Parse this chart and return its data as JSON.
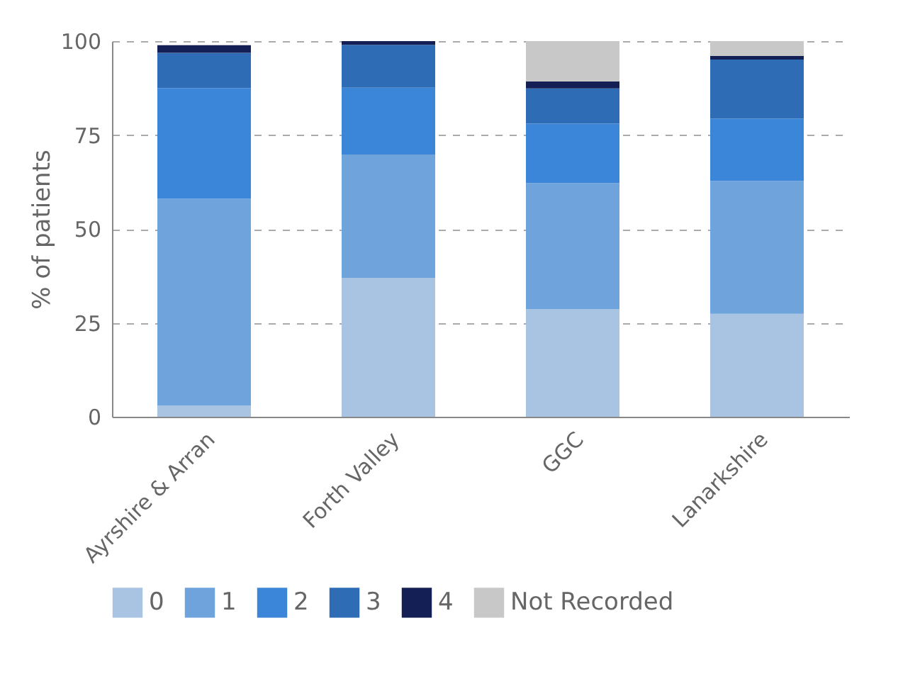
{
  "chart_data": {
    "type": "bar",
    "stacked": true,
    "ylabel": "% of patients",
    "categories": [
      "Ayrshire & Arran",
      "Forth Valley",
      "GGC",
      "Lanarkshire"
    ],
    "series": [
      {
        "name": "0",
        "color": "#a8c4e2",
        "values": [
          3,
          37,
          28.7,
          27.4
        ]
      },
      {
        "name": "1",
        "color": "#6fa3dc",
        "values": [
          55,
          32.8,
          33.5,
          35.4
        ]
      },
      {
        "name": "2",
        "color": "#3b86d8",
        "values": [
          29.5,
          17.8,
          15.8,
          16.6
        ]
      },
      {
        "name": "3",
        "color": "#2e6db5",
        "values": [
          9.4,
          11.4,
          9.4,
          15.7
        ]
      },
      {
        "name": "4",
        "color": "#141f55",
        "values": [
          2,
          1,
          1.9,
          1
        ]
      },
      {
        "name": "Not Recorded",
        "color": "#c8c8c8",
        "values": [
          0,
          0,
          10.7,
          3.9
        ]
      }
    ],
    "ylim": [
      0,
      100
    ],
    "yticks": [
      0,
      25,
      50,
      75,
      100
    ],
    "grid": "y",
    "legend": "bottom"
  }
}
